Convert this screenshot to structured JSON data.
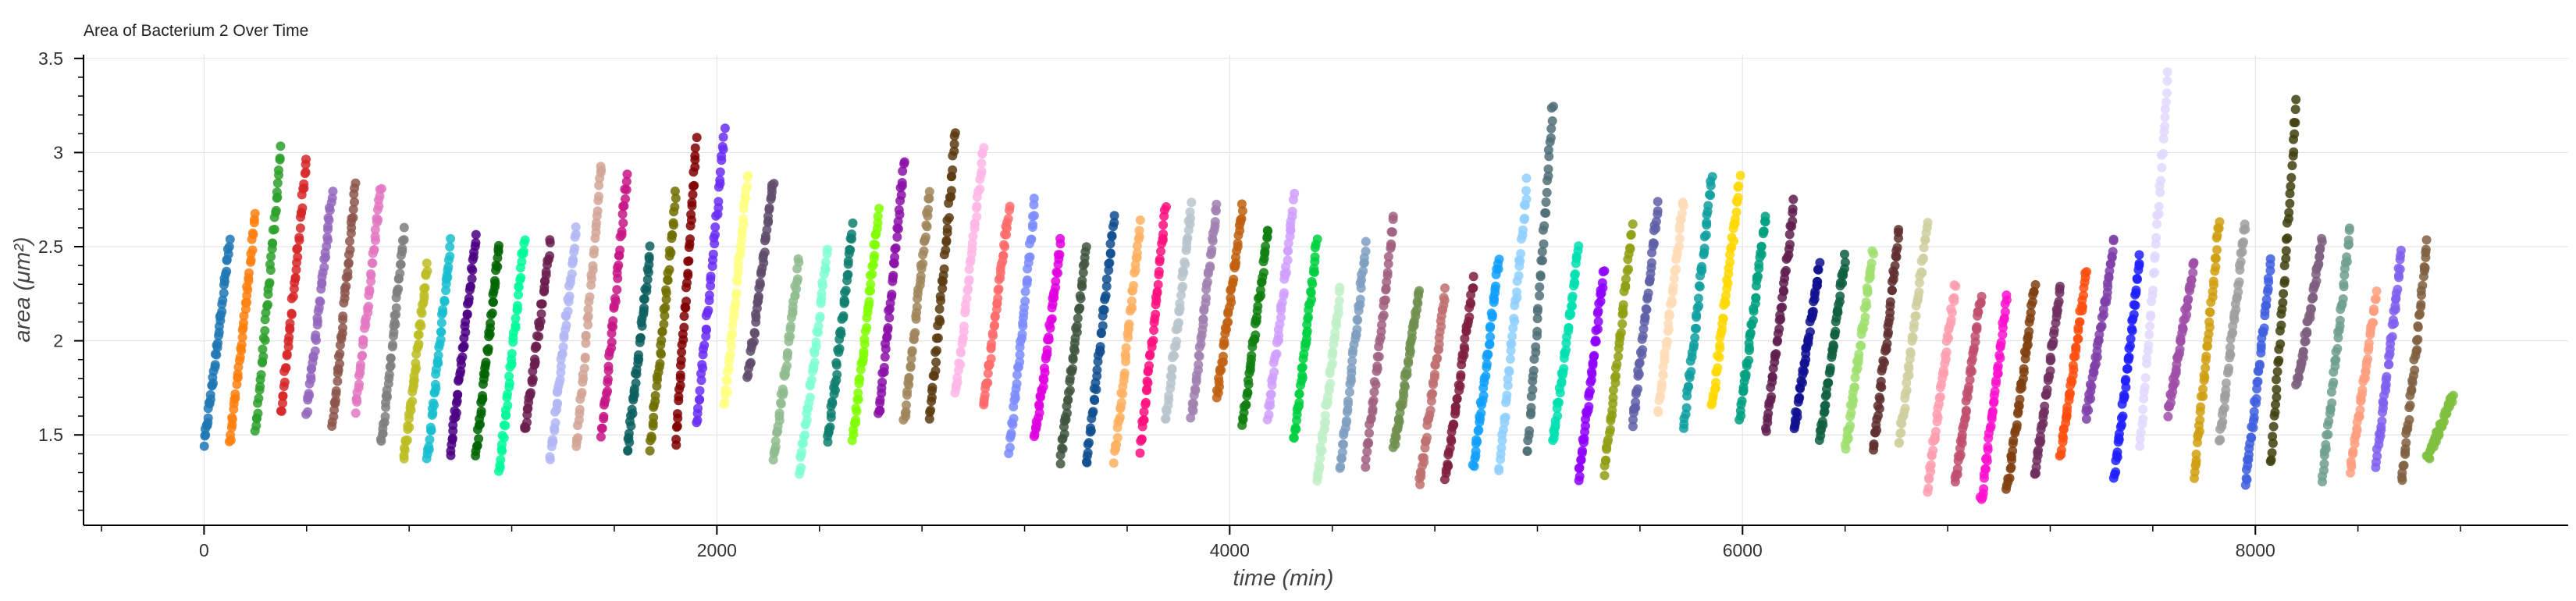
{
  "chart_data": {
    "type": "scatter",
    "title": "Area of Bacterium 2 Over Time",
    "xlabel": "time (min)",
    "ylabel": "area (μm²)",
    "xlim": [
      -470,
      9220
    ],
    "ylim": [
      1.02,
      3.52
    ],
    "x_ticks": [
      0,
      2000,
      4000,
      6000,
      8000
    ],
    "x_tick_labels": [
      "0",
      "2000",
      "4000",
      "6000",
      "8000"
    ],
    "y_ticks": [
      1.5,
      2,
      2.5,
      3,
      3.5
    ],
    "y_tick_labels": [
      "1.5",
      "2",
      "2.5",
      "3",
      "3.5"
    ],
    "grid": true,
    "legend": "none",
    "series": [
      {
        "start": 0,
        "end": 100,
        "min": 1.45,
        "max": 2.53,
        "color": "#1f77b4"
      },
      {
        "start": 100,
        "end": 200,
        "min": 1.45,
        "max": 2.66,
        "color": "#ff7f0e"
      },
      {
        "start": 200,
        "end": 300,
        "min": 1.52,
        "max": 3.02,
        "color": "#2ca02c"
      },
      {
        "start": 300,
        "end": 400,
        "min": 1.62,
        "max": 2.98,
        "color": "#d62728"
      },
      {
        "start": 400,
        "end": 500,
        "min": 1.62,
        "max": 2.8,
        "color": "#9467bd"
      },
      {
        "start": 500,
        "end": 590,
        "min": 1.55,
        "max": 2.82,
        "color": "#8c564b"
      },
      {
        "start": 590,
        "end": 690,
        "min": 1.64,
        "max": 2.83,
        "color": "#e377c2"
      },
      {
        "start": 690,
        "end": 780,
        "min": 1.45,
        "max": 2.58,
        "color": "#7f7f7f"
      },
      {
        "start": 780,
        "end": 870,
        "min": 1.37,
        "max": 2.4,
        "color": "#bcbd22"
      },
      {
        "start": 870,
        "end": 960,
        "min": 1.37,
        "max": 2.52,
        "color": "#17becf"
      },
      {
        "start": 960,
        "end": 1060,
        "min": 1.4,
        "max": 2.55,
        "color": "#4b0082"
      },
      {
        "start": 1060,
        "end": 1150,
        "min": 1.4,
        "max": 2.52,
        "color": "#006400"
      },
      {
        "start": 1150,
        "end": 1250,
        "min": 1.3,
        "max": 2.56,
        "color": "#00fa9a"
      },
      {
        "start": 1250,
        "end": 1350,
        "min": 1.52,
        "max": 2.52,
        "color": "#6b1f4f"
      },
      {
        "start": 1350,
        "end": 1450,
        "min": 1.37,
        "max": 2.6,
        "color": "#b0b7f5"
      },
      {
        "start": 1450,
        "end": 1550,
        "min": 1.42,
        "max": 2.95,
        "color": "#d2a497"
      },
      {
        "start": 1550,
        "end": 1650,
        "min": 1.5,
        "max": 2.89,
        "color": "#c71585"
      },
      {
        "start": 1650,
        "end": 1740,
        "min": 1.42,
        "max": 2.48,
        "color": "#0d5f5f"
      },
      {
        "start": 1740,
        "end": 1840,
        "min": 1.44,
        "max": 2.77,
        "color": "#6f6f00"
      },
      {
        "start": 1840,
        "end": 1920,
        "min": 1.47,
        "max": 3.07,
        "color": "#800000"
      },
      {
        "start": 1920,
        "end": 2030,
        "min": 1.55,
        "max": 3.12,
        "color": "#6a2ef5"
      },
      {
        "start": 2030,
        "end": 2120,
        "min": 1.65,
        "max": 2.9,
        "color": "#ffff80"
      },
      {
        "start": 2120,
        "end": 2220,
        "min": 1.8,
        "max": 2.85,
        "color": "#5f4b6b"
      },
      {
        "start": 2220,
        "end": 2320,
        "min": 1.36,
        "max": 2.42,
        "color": "#8fbc8f"
      },
      {
        "start": 2320,
        "end": 2430,
        "min": 1.29,
        "max": 2.48,
        "color": "#7fffd4"
      },
      {
        "start": 2430,
        "end": 2530,
        "min": 1.45,
        "max": 2.6,
        "color": "#0f7f6f"
      },
      {
        "start": 2530,
        "end": 2630,
        "min": 1.47,
        "max": 2.7,
        "color": "#7fff00"
      },
      {
        "start": 2630,
        "end": 2730,
        "min": 1.6,
        "max": 2.95,
        "color": "#8b10a8"
      },
      {
        "start": 2730,
        "end": 2830,
        "min": 1.57,
        "max": 2.8,
        "color": "#a0855a"
      },
      {
        "start": 2830,
        "end": 2930,
        "min": 1.58,
        "max": 3.1,
        "color": "#5a3a10"
      },
      {
        "start": 2930,
        "end": 3040,
        "min": 1.7,
        "max": 3.05,
        "color": "#ffb6e6"
      },
      {
        "start": 3040,
        "end": 3140,
        "min": 1.65,
        "max": 2.72,
        "color": "#ff6b6b"
      },
      {
        "start": 3140,
        "end": 3240,
        "min": 1.42,
        "max": 2.74,
        "color": "#7b8cff"
      },
      {
        "start": 3240,
        "end": 3340,
        "min": 1.47,
        "max": 2.52,
        "color": "#e000e0"
      },
      {
        "start": 3340,
        "end": 3440,
        "min": 1.37,
        "max": 2.48,
        "color": "#405540"
      },
      {
        "start": 3440,
        "end": 3550,
        "min": 1.34,
        "max": 2.66,
        "color": "#0f4f8f"
      },
      {
        "start": 3550,
        "end": 3650,
        "min": 1.37,
        "max": 2.63,
        "color": "#ffb060"
      },
      {
        "start": 3650,
        "end": 3750,
        "min": 1.42,
        "max": 2.7,
        "color": "#ff0f7f"
      },
      {
        "start": 3750,
        "end": 3850,
        "min": 1.58,
        "max": 2.72,
        "color": "#b8c4cc"
      },
      {
        "start": 3850,
        "end": 3950,
        "min": 1.6,
        "max": 2.72,
        "color": "#a080b0"
      },
      {
        "start": 3950,
        "end": 4050,
        "min": 1.7,
        "max": 2.72,
        "color": "#c06010"
      },
      {
        "start": 4050,
        "end": 4150,
        "min": 1.55,
        "max": 2.6,
        "color": "#0f7f0f"
      },
      {
        "start": 4150,
        "end": 4250,
        "min": 1.6,
        "max": 2.76,
        "color": "#d09fff"
      },
      {
        "start": 4250,
        "end": 4340,
        "min": 1.47,
        "max": 2.52,
        "color": "#00d040"
      },
      {
        "start": 4340,
        "end": 4430,
        "min": 1.25,
        "max": 2.26,
        "color": "#c0f0c8"
      },
      {
        "start": 4430,
        "end": 4530,
        "min": 1.32,
        "max": 2.52,
        "color": "#7f9fbf"
      },
      {
        "start": 4530,
        "end": 4640,
        "min": 1.35,
        "max": 2.66,
        "color": "#a06080"
      },
      {
        "start": 4640,
        "end": 4740,
        "min": 1.43,
        "max": 2.27,
        "color": "#6f8f4f"
      },
      {
        "start": 4740,
        "end": 4840,
        "min": 1.23,
        "max": 2.26,
        "color": "#bf7070"
      },
      {
        "start": 4840,
        "end": 4950,
        "min": 1.26,
        "max": 2.32,
        "color": "#7f1f3f"
      },
      {
        "start": 4950,
        "end": 5050,
        "min": 1.33,
        "max": 2.44,
        "color": "#10a0ff"
      },
      {
        "start": 5050,
        "end": 5160,
        "min": 1.3,
        "max": 2.84,
        "color": "#8fd0ff"
      },
      {
        "start": 5160,
        "end": 5260,
        "min": 1.4,
        "max": 3.26,
        "color": "#4f6f75"
      },
      {
        "start": 5260,
        "end": 5360,
        "min": 1.45,
        "max": 2.5,
        "color": "#00e0b0"
      },
      {
        "start": 5360,
        "end": 5460,
        "min": 1.27,
        "max": 2.38,
        "color": "#8f00ff"
      },
      {
        "start": 5460,
        "end": 5570,
        "min": 1.3,
        "max": 2.6,
        "color": "#8f9f10"
      },
      {
        "start": 5570,
        "end": 5670,
        "min": 1.55,
        "max": 2.73,
        "color": "#5f5fa8"
      },
      {
        "start": 5670,
        "end": 5770,
        "min": 1.62,
        "max": 2.76,
        "color": "#ffdcb6"
      },
      {
        "start": 5770,
        "end": 5880,
        "min": 1.55,
        "max": 2.88,
        "color": "#0f9f9f"
      },
      {
        "start": 5880,
        "end": 5990,
        "min": 1.65,
        "max": 2.86,
        "color": "#ffd800"
      },
      {
        "start": 5990,
        "end": 6090,
        "min": 1.6,
        "max": 2.67,
        "color": "#00a080"
      },
      {
        "start": 6090,
        "end": 6200,
        "min": 1.52,
        "max": 2.73,
        "color": "#5f1f4f"
      },
      {
        "start": 6200,
        "end": 6300,
        "min": 1.53,
        "max": 2.4,
        "color": "#0f0f8f"
      },
      {
        "start": 6300,
        "end": 6400,
        "min": 1.47,
        "max": 2.45,
        "color": "#0f5f3f"
      },
      {
        "start": 6400,
        "end": 6510,
        "min": 1.42,
        "max": 2.48,
        "color": "#9fdf6f"
      },
      {
        "start": 6510,
        "end": 6610,
        "min": 1.42,
        "max": 2.6,
        "color": "#5f2f2f"
      },
      {
        "start": 6610,
        "end": 6720,
        "min": 1.45,
        "max": 2.62,
        "color": "#cfcf9f"
      },
      {
        "start": 6720,
        "end": 6830,
        "min": 1.22,
        "max": 2.3,
        "color": "#ff9fb0"
      },
      {
        "start": 6830,
        "end": 6930,
        "min": 1.25,
        "max": 2.25,
        "color": "#bf4f6f"
      },
      {
        "start": 6930,
        "end": 7030,
        "min": 1.15,
        "max": 2.23,
        "color": "#ff10d0"
      },
      {
        "start": 7030,
        "end": 7140,
        "min": 1.2,
        "max": 2.3,
        "color": "#7f3f10"
      },
      {
        "start": 7140,
        "end": 7240,
        "min": 1.28,
        "max": 2.3,
        "color": "#6f2f5f"
      },
      {
        "start": 7240,
        "end": 7340,
        "min": 1.4,
        "max": 2.36,
        "color": "#ff4f0f"
      },
      {
        "start": 7340,
        "end": 7450,
        "min": 1.6,
        "max": 2.53,
        "color": "#7f3fa8"
      },
      {
        "start": 7450,
        "end": 7550,
        "min": 1.28,
        "max": 2.45,
        "color": "#1f1fff"
      },
      {
        "start": 7550,
        "end": 7660,
        "min": 1.45,
        "max": 3.42,
        "color": "#e0d8ff"
      },
      {
        "start": 7660,
        "end": 7760,
        "min": 1.62,
        "max": 2.42,
        "color": "#9f4fa8"
      },
      {
        "start": 7760,
        "end": 7860,
        "min": 1.28,
        "max": 2.65,
        "color": "#d09f10"
      },
      {
        "start": 7860,
        "end": 7960,
        "min": 1.47,
        "max": 2.63,
        "color": "#9f9f9f"
      },
      {
        "start": 7960,
        "end": 8060,
        "min": 1.23,
        "max": 2.42,
        "color": "#3f5fdf"
      },
      {
        "start": 8060,
        "end": 8160,
        "min": 1.35,
        "max": 3.27,
        "color": "#3f3f0f"
      },
      {
        "start": 8160,
        "end": 8260,
        "min": 1.75,
        "max": 2.53,
        "color": "#7f5f7f"
      },
      {
        "start": 8260,
        "end": 8370,
        "min": 1.26,
        "max": 2.62,
        "color": "#6f9f8f"
      },
      {
        "start": 8370,
        "end": 8470,
        "min": 1.3,
        "max": 2.25,
        "color": "#ff9f7f"
      },
      {
        "start": 8470,
        "end": 8570,
        "min": 1.35,
        "max": 2.48,
        "color": "#7f5fef"
      },
      {
        "start": 8570,
        "end": 8670,
        "min": 1.26,
        "max": 2.53,
        "color": "#7f5f3f"
      },
      {
        "start": 8670,
        "end": 8770,
        "min": 1.37,
        "max": 1.7,
        "color": "#7fbf3f"
      }
    ]
  }
}
